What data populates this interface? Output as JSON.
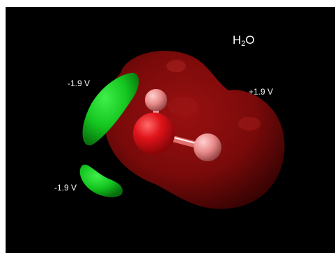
{
  "molecule": {
    "formula_base": "H",
    "formula_subscript": "2",
    "formula_end": "O"
  },
  "isosurfaces": [
    {
      "label": "-1.9 V",
      "color": "#12c51e"
    },
    {
      "label": "-1.9 V",
      "color": "#12c51e"
    },
    {
      "label": "+1.9 V",
      "color": "#8a0b0b"
    }
  ],
  "atoms": {
    "oxygen_color": "#e0141a",
    "hydrogen_color": "#e98a8a"
  }
}
